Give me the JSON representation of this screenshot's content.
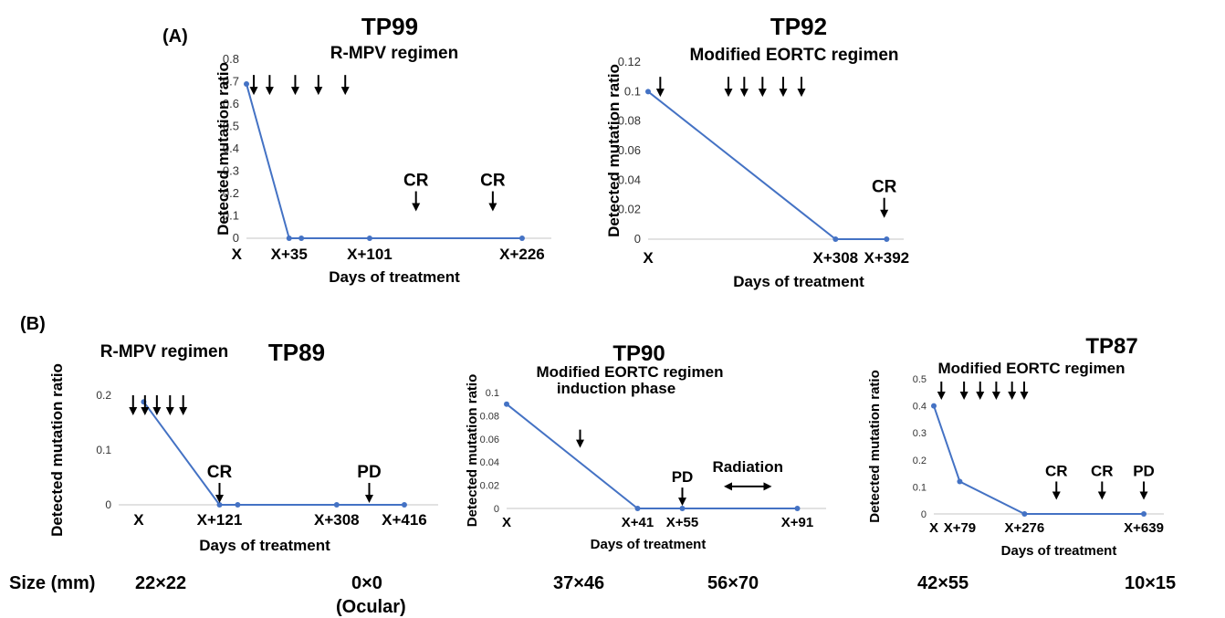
{
  "panels": {
    "A": "(A)",
    "B": "(B)"
  },
  "size_row": {
    "label": "Size (mm)",
    "tp89_first": "22×22",
    "tp89_second": "0×0",
    "tp89_second_note": "(Ocular)",
    "tp90_first": "37×46",
    "tp90_second": "56×70",
    "tp87_first": "42×55",
    "tp87_second": "10×15"
  },
  "colors": {
    "line": "#4472C4",
    "axis": "#d9d9d9",
    "text": "#000000"
  },
  "chart_data": [
    {
      "id": "tp99",
      "type": "line",
      "title": "TP99",
      "subtitle": "R-MPV regimen",
      "ylabel": "Detected mutation ratio",
      "xlabel": "Days of treatment",
      "ylim": [
        0,
        0.8
      ],
      "yticks": [
        "0",
        "0.1",
        "0.2",
        "0.3",
        "0.4",
        "0.5",
        "0.6",
        "0.7",
        "0.8"
      ],
      "xlim": [
        0,
        250
      ],
      "points": [
        {
          "x": 0,
          "y": 0.69
        },
        {
          "x": 35,
          "y": 0
        },
        {
          "x": 45,
          "y": 0
        },
        {
          "x": 101,
          "y": 0
        },
        {
          "x": 226,
          "y": 0
        }
      ],
      "xticks": [
        {
          "x": -8,
          "label": "X"
        },
        {
          "x": 35,
          "label": "X+35"
        },
        {
          "x": 101,
          "label": "X+101"
        },
        {
          "x": 226,
          "label": "X+226"
        }
      ],
      "arrows": [
        {
          "x": 6,
          "y": 0.73,
          "label": ""
        },
        {
          "x": 19,
          "y": 0.73,
          "label": ""
        },
        {
          "x": 40,
          "y": 0.73,
          "label": ""
        },
        {
          "x": 59,
          "y": 0.73,
          "label": ""
        },
        {
          "x": 81,
          "y": 0.73,
          "label": ""
        },
        {
          "x": 139,
          "y": 0.21,
          "label": "CR"
        },
        {
          "x": 202,
          "y": 0.21,
          "label": "CR"
        }
      ],
      "interval": null
    },
    {
      "id": "tp92",
      "type": "line",
      "title": "TP92",
      "subtitle": "Modified EORTC regimen",
      "ylabel": "Detected mutation ratio",
      "xlabel": "Days of treatment",
      "ylim": [
        0,
        0.12
      ],
      "yticks": [
        "0",
        "0.02",
        "0.04",
        "0.06",
        "0.08",
        "0.1",
        "0.12"
      ],
      "xlim": [
        0,
        420
      ],
      "points": [
        {
          "x": 0,
          "y": 0.1
        },
        {
          "x": 308,
          "y": 0
        },
        {
          "x": 392,
          "y": 0
        }
      ],
      "xticks": [
        {
          "x": 0,
          "label": "X"
        },
        {
          "x": 308,
          "label": "X+308"
        },
        {
          "x": 392,
          "label": "X+392"
        }
      ],
      "arrows": [
        {
          "x": 20,
          "y": 0.11,
          "label": ""
        },
        {
          "x": 132,
          "y": 0.11,
          "label": ""
        },
        {
          "x": 158,
          "y": 0.11,
          "label": ""
        },
        {
          "x": 188,
          "y": 0.11,
          "label": ""
        },
        {
          "x": 222,
          "y": 0.11,
          "label": ""
        },
        {
          "x": 252,
          "y": 0.11,
          "label": ""
        },
        {
          "x": 388,
          "y": 0.028,
          "label": "CR"
        }
      ],
      "interval": null
    },
    {
      "id": "tp89",
      "type": "line",
      "title": "TP89",
      "subtitle": "R-MPV regimen",
      "ylabel": "Detected mutation ratio",
      "xlabel": "Days of treatment",
      "ylim": [
        0,
        0.2
      ],
      "yticks": [
        "0",
        "0.1",
        "0.2"
      ],
      "xlim": [
        -40,
        470
      ],
      "points": [
        {
          "x": 0,
          "y": 0.188
        },
        {
          "x": 121,
          "y": 0
        },
        {
          "x": 150,
          "y": 0
        },
        {
          "x": 308,
          "y": 0
        },
        {
          "x": 416,
          "y": 0
        }
      ],
      "xticks": [
        {
          "x": -8,
          "label": "X"
        },
        {
          "x": 121,
          "label": "X+121"
        },
        {
          "x": 308,
          "label": "X+308"
        },
        {
          "x": 416,
          "label": "X+416"
        }
      ],
      "arrows": [
        {
          "x": -17,
          "y": 0.2,
          "label": ""
        },
        {
          "x": 2,
          "y": 0.2,
          "label": ""
        },
        {
          "x": 21,
          "y": 0.2,
          "label": ""
        },
        {
          "x": 42,
          "y": 0.2,
          "label": ""
        },
        {
          "x": 63,
          "y": 0.2,
          "label": ""
        },
        {
          "x": 121,
          "y": 0.04,
          "label": "CR"
        },
        {
          "x": 360,
          "y": 0.04,
          "label": "PD"
        }
      ],
      "interval": null
    },
    {
      "id": "tp90",
      "type": "line",
      "title": "TP90",
      "subtitle": "Modified EORTC regimen",
      "subtitle2": "induction phase",
      "ylabel": "Detected mutation ratio",
      "xlabel": "Days of treatment",
      "ylim": [
        0,
        0.1
      ],
      "yticks": [
        "0",
        "0.02",
        "0.04",
        "0.06",
        "0.08",
        "0.1"
      ],
      "xlim": [
        0,
        100
      ],
      "points": [
        {
          "x": 0,
          "y": 0.09
        },
        {
          "x": 41,
          "y": 0
        },
        {
          "x": 55,
          "y": 0
        },
        {
          "x": 91,
          "y": 0
        }
      ],
      "xticks": [
        {
          "x": 0,
          "label": "X"
        },
        {
          "x": 41,
          "label": "X+41"
        },
        {
          "x": 55,
          "label": "X+55"
        },
        {
          "x": 91,
          "label": "X+91"
        }
      ],
      "arrows": [
        {
          "x": 23,
          "y": 0.068,
          "label": ""
        },
        {
          "x": 55,
          "y": 0.018,
          "label": "PD"
        }
      ],
      "interval": {
        "x0": 68,
        "x1": 83,
        "y": 0.019,
        "label": "Radiation"
      }
    },
    {
      "id": "tp87",
      "type": "line",
      "title": "TP87",
      "subtitle": "Modified EORTC regimen",
      "ylabel": "Detected mutation ratio",
      "xlabel": "Days of treatment",
      "ylim": [
        0,
        0.5
      ],
      "yticks": [
        "0",
        "0.1",
        "0.2",
        "0.3",
        "0.4",
        "0.5"
      ],
      "xlim": [
        0,
        700
      ],
      "points": [
        {
          "x": 0,
          "y": 0.4
        },
        {
          "x": 79,
          "y": 0.12
        },
        {
          "x": 276,
          "y": 0
        },
        {
          "x": 639,
          "y": 0
        }
      ],
      "xticks": [
        {
          "x": 0,
          "label": "X"
        },
        {
          "x": 79,
          "label": "X+79"
        },
        {
          "x": 276,
          "label": "X+276"
        },
        {
          "x": 639,
          "label": "X+639"
        }
      ],
      "arrows": [
        {
          "x": 23,
          "y": 0.49,
          "label": ""
        },
        {
          "x": 92,
          "y": 0.49,
          "label": ""
        },
        {
          "x": 141,
          "y": 0.49,
          "label": ""
        },
        {
          "x": 190,
          "y": 0.49,
          "label": ""
        },
        {
          "x": 238,
          "y": 0.49,
          "label": ""
        },
        {
          "x": 275,
          "y": 0.49,
          "label": ""
        },
        {
          "x": 373,
          "y": 0.12,
          "label": "CR"
        },
        {
          "x": 512,
          "y": 0.12,
          "label": "CR"
        },
        {
          "x": 639,
          "y": 0.12,
          "label": "PD"
        }
      ],
      "interval": null
    }
  ]
}
